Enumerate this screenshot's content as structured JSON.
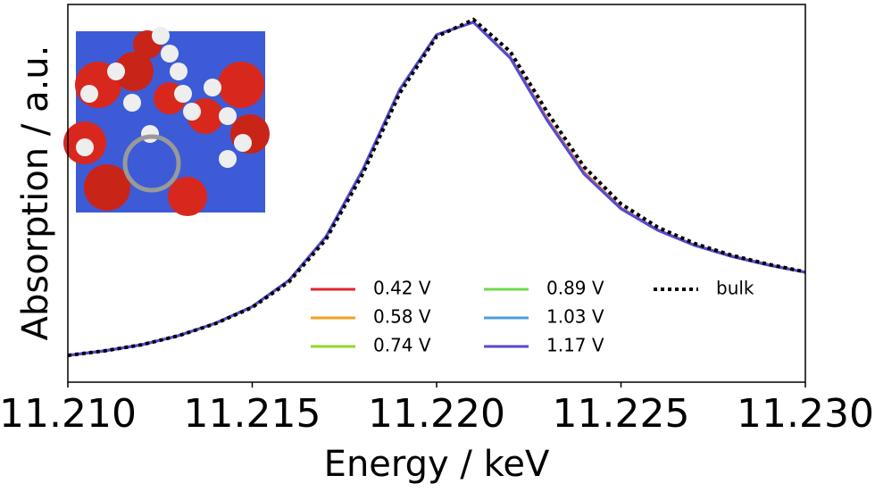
{
  "chart_data": {
    "type": "line",
    "xlabel": "Energy / keV",
    "ylabel": "Absorption / a.u.",
    "x": [
      11.21,
      11.211,
      11.212,
      11.213,
      11.214,
      11.215,
      11.216,
      11.217,
      11.218,
      11.219,
      11.22,
      11.221,
      11.222,
      11.223,
      11.224,
      11.225,
      11.226,
      11.227,
      11.228,
      11.229,
      11.23
    ],
    "xlim": [
      11.21,
      11.23
    ],
    "xticks": [
      {
        "value": 11.21,
        "label": "11.210"
      },
      {
        "value": 11.215,
        "label": "11.215"
      },
      {
        "value": 11.22,
        "label": "11.220"
      },
      {
        "value": 11.225,
        "label": "11.225"
      },
      {
        "value": 11.23,
        "label": "11.230"
      }
    ],
    "ylim": [
      0,
      1
    ],
    "series": [
      {
        "name": "0.42 V",
        "color": "#e3242b",
        "values": [
          0.071,
          0.083,
          0.099,
          0.123,
          0.156,
          0.2,
          0.27,
          0.385,
          0.563,
          0.775,
          0.92,
          0.953,
          0.86,
          0.697,
          0.555,
          0.461,
          0.403,
          0.363,
          0.334,
          0.311,
          0.291
        ]
      },
      {
        "name": "0.58 V",
        "color": "#f4a11e",
        "values": [
          0.071,
          0.083,
          0.099,
          0.123,
          0.156,
          0.2,
          0.27,
          0.385,
          0.563,
          0.775,
          0.92,
          0.953,
          0.859,
          0.695,
          0.553,
          0.46,
          0.402,
          0.362,
          0.333,
          0.31,
          0.291
        ]
      },
      {
        "name": "0.74 V",
        "color": "#8fd829",
        "values": [
          0.071,
          0.083,
          0.099,
          0.123,
          0.156,
          0.2,
          0.27,
          0.385,
          0.563,
          0.775,
          0.92,
          0.953,
          0.858,
          0.693,
          0.551,
          0.459,
          0.402,
          0.362,
          0.333,
          0.31,
          0.291
        ]
      },
      {
        "name": "0.89 V",
        "color": "#6fd84e",
        "values": [
          0.071,
          0.083,
          0.099,
          0.123,
          0.156,
          0.2,
          0.27,
          0.385,
          0.563,
          0.775,
          0.92,
          0.953,
          0.858,
          0.693,
          0.551,
          0.459,
          0.402,
          0.362,
          0.333,
          0.31,
          0.291
        ]
      },
      {
        "name": "1.03 V",
        "color": "#4a9ee0",
        "values": [
          0.071,
          0.083,
          0.099,
          0.123,
          0.156,
          0.2,
          0.27,
          0.385,
          0.563,
          0.775,
          0.92,
          0.953,
          0.858,
          0.693,
          0.551,
          0.459,
          0.402,
          0.362,
          0.333,
          0.31,
          0.291
        ]
      },
      {
        "name": "1.17 V",
        "color": "#5549d6",
        "values": [
          0.071,
          0.083,
          0.099,
          0.123,
          0.156,
          0.2,
          0.27,
          0.385,
          0.563,
          0.775,
          0.92,
          0.953,
          0.858,
          0.693,
          0.551,
          0.459,
          0.402,
          0.362,
          0.333,
          0.31,
          0.291
        ]
      },
      {
        "name": "bulk",
        "color": "#000000",
        "linestyle": "dotted",
        "values": [
          0.071,
          0.083,
          0.099,
          0.123,
          0.155,
          0.198,
          0.266,
          0.378,
          0.552,
          0.765,
          0.915,
          0.96,
          0.875,
          0.715,
          0.57,
          0.472,
          0.41,
          0.367,
          0.336,
          0.312,
          0.292
        ]
      }
    ],
    "legend": "lower right"
  }
}
